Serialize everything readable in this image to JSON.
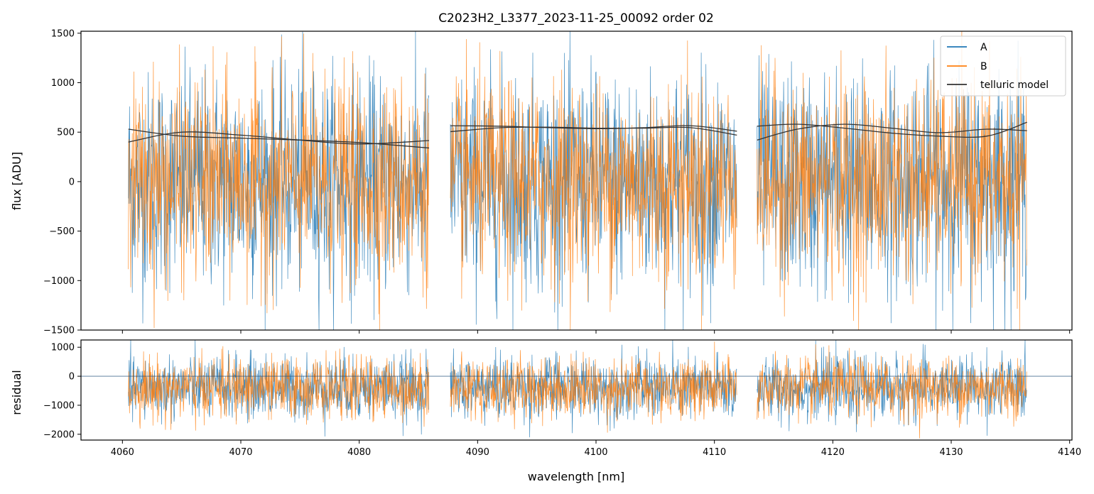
{
  "chart_data": [
    {
      "type": "line",
      "title": "C2023H2_L3377_2023-11-25_00092  order 02",
      "xlabel": "",
      "ylabel": "flux [ADU]",
      "xlim": [
        4056.5,
        4140.2
      ],
      "ylim": [
        -1500,
        1520
      ],
      "yticks": [
        -1500,
        -1000,
        -500,
        0,
        500,
        1000,
        1500
      ],
      "yticklabels": [
        "−1500",
        "−1000",
        "−500",
        "0",
        "500",
        "1000",
        "1500"
      ],
      "legend_position": "top-right",
      "segments": [
        {
          "x_start": 4060.5,
          "x_end": 4085.9
        },
        {
          "x_start": 4087.7,
          "x_end": 4111.9
        },
        {
          "x_start": 4113.6,
          "x_end": 4136.4
        }
      ],
      "series": [
        {
          "name": "A",
          "color": "#1f77b4",
          "style": "noise",
          "center": 0,
          "spread": 1300
        },
        {
          "name": "B",
          "color": "#ff7f0e",
          "style": "noise",
          "center": 0,
          "spread": 1200
        },
        {
          "name": "telluric model",
          "color": "#333333",
          "style": "smooth",
          "curves": [
            {
              "x": [
                4060.5,
                4065,
                4070,
                4075,
                4080,
                4085.9
              ],
              "y": [
                530,
                460,
                440,
                420,
                395,
                340
              ]
            },
            {
              "x": [
                4060.5,
                4065,
                4070,
                4075,
                4080,
                4085.9
              ],
              "y": [
                400,
                500,
                470,
                420,
                380,
                415
              ]
            },
            {
              "x": [
                4087.7,
                4092,
                4096,
                4100,
                4104,
                4108,
                4111.9
              ],
              "y": [
                565,
                560,
                545,
                535,
                545,
                565,
                510
              ]
            },
            {
              "x": [
                4087.7,
                4092,
                4096,
                4100,
                4104,
                4108,
                4111.9
              ],
              "y": [
                505,
                545,
                550,
                540,
                540,
                545,
                470
              ]
            },
            {
              "x": [
                4113.6,
                4117,
                4121,
                4125,
                4129,
                4133,
                4136.4
              ],
              "y": [
                560,
                580,
                540,
                490,
                460,
                460,
                600
              ]
            },
            {
              "x": [
                4113.6,
                4117,
                4121,
                4125,
                4129,
                4133,
                4136.4
              ],
              "y": [
                420,
                530,
                580,
                540,
                495,
                530,
                515
              ]
            }
          ]
        }
      ]
    },
    {
      "type": "line",
      "title": "",
      "xlabel": "wavelength [nm]",
      "ylabel": "residual",
      "xlim": [
        4056.5,
        4140.2
      ],
      "ylim": [
        -2200,
        1250
      ],
      "xticks": [
        4060,
        4070,
        4080,
        4090,
        4100,
        4110,
        4120,
        4130,
        4140
      ],
      "yticks": [
        -2000,
        -1000,
        0,
        1000
      ],
      "yticklabels": [
        "−2000",
        "−1000",
        "0",
        "1000"
      ],
      "zero_line": true,
      "series": [
        {
          "name": "A",
          "color": "#1f77b4",
          "style": "noise",
          "center": -400,
          "spread": 1300
        },
        {
          "name": "B",
          "color": "#ff7f0e",
          "style": "noise",
          "center": -400,
          "spread": 1250
        }
      ]
    }
  ]
}
